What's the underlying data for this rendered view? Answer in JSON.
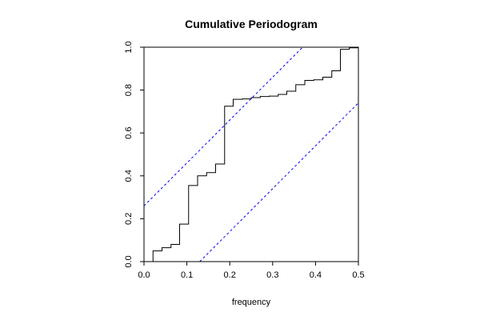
{
  "chart_data": {
    "type": "line",
    "title": "Cumulative Periodogram",
    "xlabel": "frequency",
    "ylabel": "",
    "xlim": [
      0,
      0.5
    ],
    "ylim": [
      0,
      1
    ],
    "x_ticks": [
      0.0,
      0.1,
      0.2,
      0.3,
      0.4,
      0.5
    ],
    "x_tick_labels": [
      "0.0",
      "0.1",
      "0.2",
      "0.3",
      "0.4",
      "0.5"
    ],
    "y_ticks": [
      0.0,
      0.2,
      0.4,
      0.6,
      0.8,
      1.0
    ],
    "y_tick_labels": [
      "0.0",
      "0.2",
      "0.4",
      "0.6",
      "0.8",
      "1.0"
    ],
    "grid": false,
    "series": [
      {
        "style": "step",
        "color": "#000000",
        "x": [
          0.021,
          0.042,
          0.063,
          0.083,
          0.104,
          0.125,
          0.146,
          0.167,
          0.188,
          0.208,
          0.229,
          0.25,
          0.271,
          0.292,
          0.313,
          0.333,
          0.354,
          0.375,
          0.396,
          0.417,
          0.438,
          0.458,
          0.479,
          0.5
        ],
        "y": [
          0.05,
          0.065,
          0.08,
          0.175,
          0.355,
          0.4,
          0.415,
          0.455,
          0.725,
          0.757,
          0.759,
          0.765,
          0.77,
          0.772,
          0.78,
          0.795,
          0.825,
          0.845,
          0.848,
          0.86,
          0.89,
          0.99,
          0.997,
          1.0
        ]
      },
      {
        "style": "dashed",
        "color": "#0000ff",
        "x": [
          0.0,
          0.37
        ],
        "y": [
          0.26,
          1.0
        ]
      },
      {
        "style": "dashed",
        "color": "#0000ff",
        "x": [
          0.13,
          0.5
        ],
        "y": [
          0.0,
          0.74
        ]
      }
    ]
  }
}
